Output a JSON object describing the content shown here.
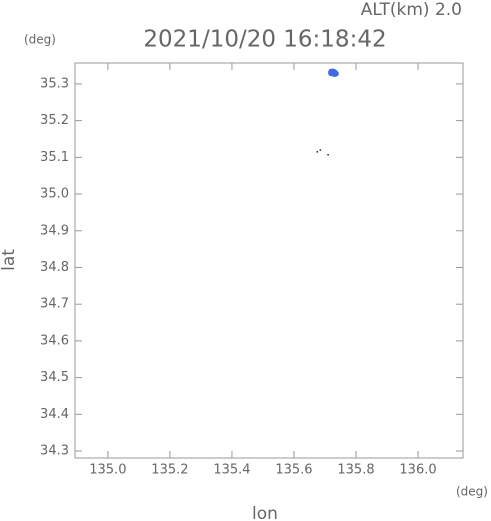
{
  "chart_data": {
    "type": "scatter",
    "annotation": "ALT(km) 2.0",
    "title": "2021/10/20 16:18:42",
    "y_unit": "(deg)",
    "x_unit": "(deg)",
    "xlabel": "lon",
    "ylabel": "lat",
    "xlim": [
      134.894,
      136.145
    ],
    "ylim": [
      34.281,
      35.357
    ],
    "xticks": [
      {
        "value": 135.0,
        "label": "135.0"
      },
      135.2,
      135.4,
      135.6,
      135.8,
      {
        "value": 136.0,
        "label": "136.0"
      }
    ],
    "yticks": [
      35.3,
      35.2,
      35.1,
      {
        "value": 35.0,
        "label": "35.0"
      },
      34.9,
      34.8,
      34.7,
      34.6,
      34.5,
      34.4,
      34.3
    ],
    "series": [
      {
        "color": "#4169e1",
        "x": [
          135.72,
          135.725,
          135.73,
          135.735,
          135.72,
          135.73
        ],
        "y": [
          35.333,
          35.334,
          35.332,
          35.328,
          35.329,
          35.327
        ]
      },
      {
        "color": "#000000",
        "x": [
          135.675,
          135.685,
          135.71
        ],
        "y": [
          35.115,
          35.12,
          35.107
        ]
      }
    ]
  }
}
